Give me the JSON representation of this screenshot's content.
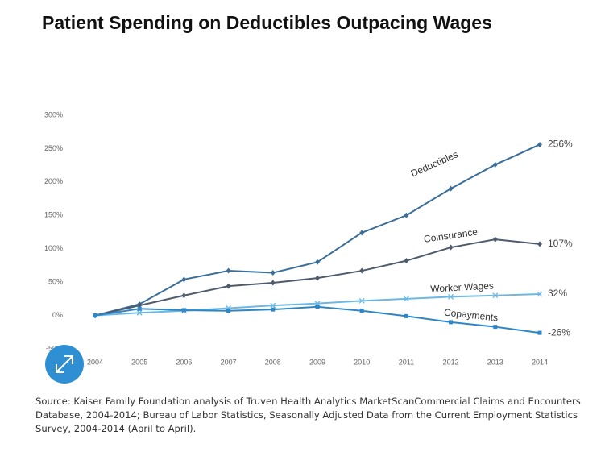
{
  "chart_data": {
    "type": "line",
    "title": "Patient Spending on Deductibles Outpacing Wages",
    "categories": [
      "2004",
      "2005",
      "2006",
      "2007",
      "2008",
      "2009",
      "2010",
      "2011",
      "2012",
      "2013",
      "2014"
    ],
    "series": [
      {
        "name": "Deductibles",
        "color": "#3b6e98",
        "marker": "diamond",
        "values": [
          0,
          17,
          54,
          67,
          64,
          80,
          124,
          150,
          190,
          226,
          256
        ],
        "value_labels": [
          null,
          null,
          null,
          null,
          null,
          null,
          null,
          null,
          null,
          null,
          "256%"
        ]
      },
      {
        "name": "Coinsurance",
        "color": "#4d5b6c",
        "marker": "diamond",
        "values": [
          0,
          15,
          30,
          44,
          49,
          56,
          67,
          82,
          102,
          114,
          107
        ],
        "value_labels": [
          null,
          null,
          null,
          null,
          null,
          null,
          null,
          null,
          null,
          null,
          "107%"
        ]
      },
      {
        "name": "Worker Wages",
        "color": "#6cb8e2",
        "marker": "x",
        "values": [
          0,
          4,
          7,
          11,
          15,
          18,
          22,
          25,
          28,
          30,
          32
        ],
        "value_labels": [
          null,
          null,
          null,
          null,
          null,
          null,
          null,
          null,
          null,
          null,
          "32%"
        ]
      },
      {
        "name": "Copayments",
        "color": "#2e86c6",
        "marker": "square",
        "values": [
          0,
          10,
          8,
          7,
          9,
          13,
          7,
          -1,
          -10,
          -17,
          -26
        ],
        "value_labels": [
          null,
          null,
          null,
          null,
          null,
          null,
          null,
          null,
          null,
          null,
          "-26%"
        ]
      }
    ],
    "ylim": [
      -50,
      300
    ],
    "yticks": [
      {
        "value": -50,
        "label": "-50%"
      },
      {
        "value": 0,
        "label": "0%"
      },
      {
        "value": 50,
        "label": "50%"
      },
      {
        "value": 100,
        "label": "100%"
      },
      {
        "value": 150,
        "label": "150%"
      },
      {
        "value": 200,
        "label": "200%"
      },
      {
        "value": 250,
        "label": "250%"
      },
      {
        "value": 300,
        "label": "300%"
      }
    ],
    "grid": false,
    "source": "Source: Kaiser Family Foundation analysis of Truven Health Analytics MarketScanCommercial Claims and Encounters Database, 2004-2014; Bureau of Labor Statistics, Seasonally Adjusted Data from the Current Employment Statistics Survey, 2004-2014 (April to April)."
  }
}
